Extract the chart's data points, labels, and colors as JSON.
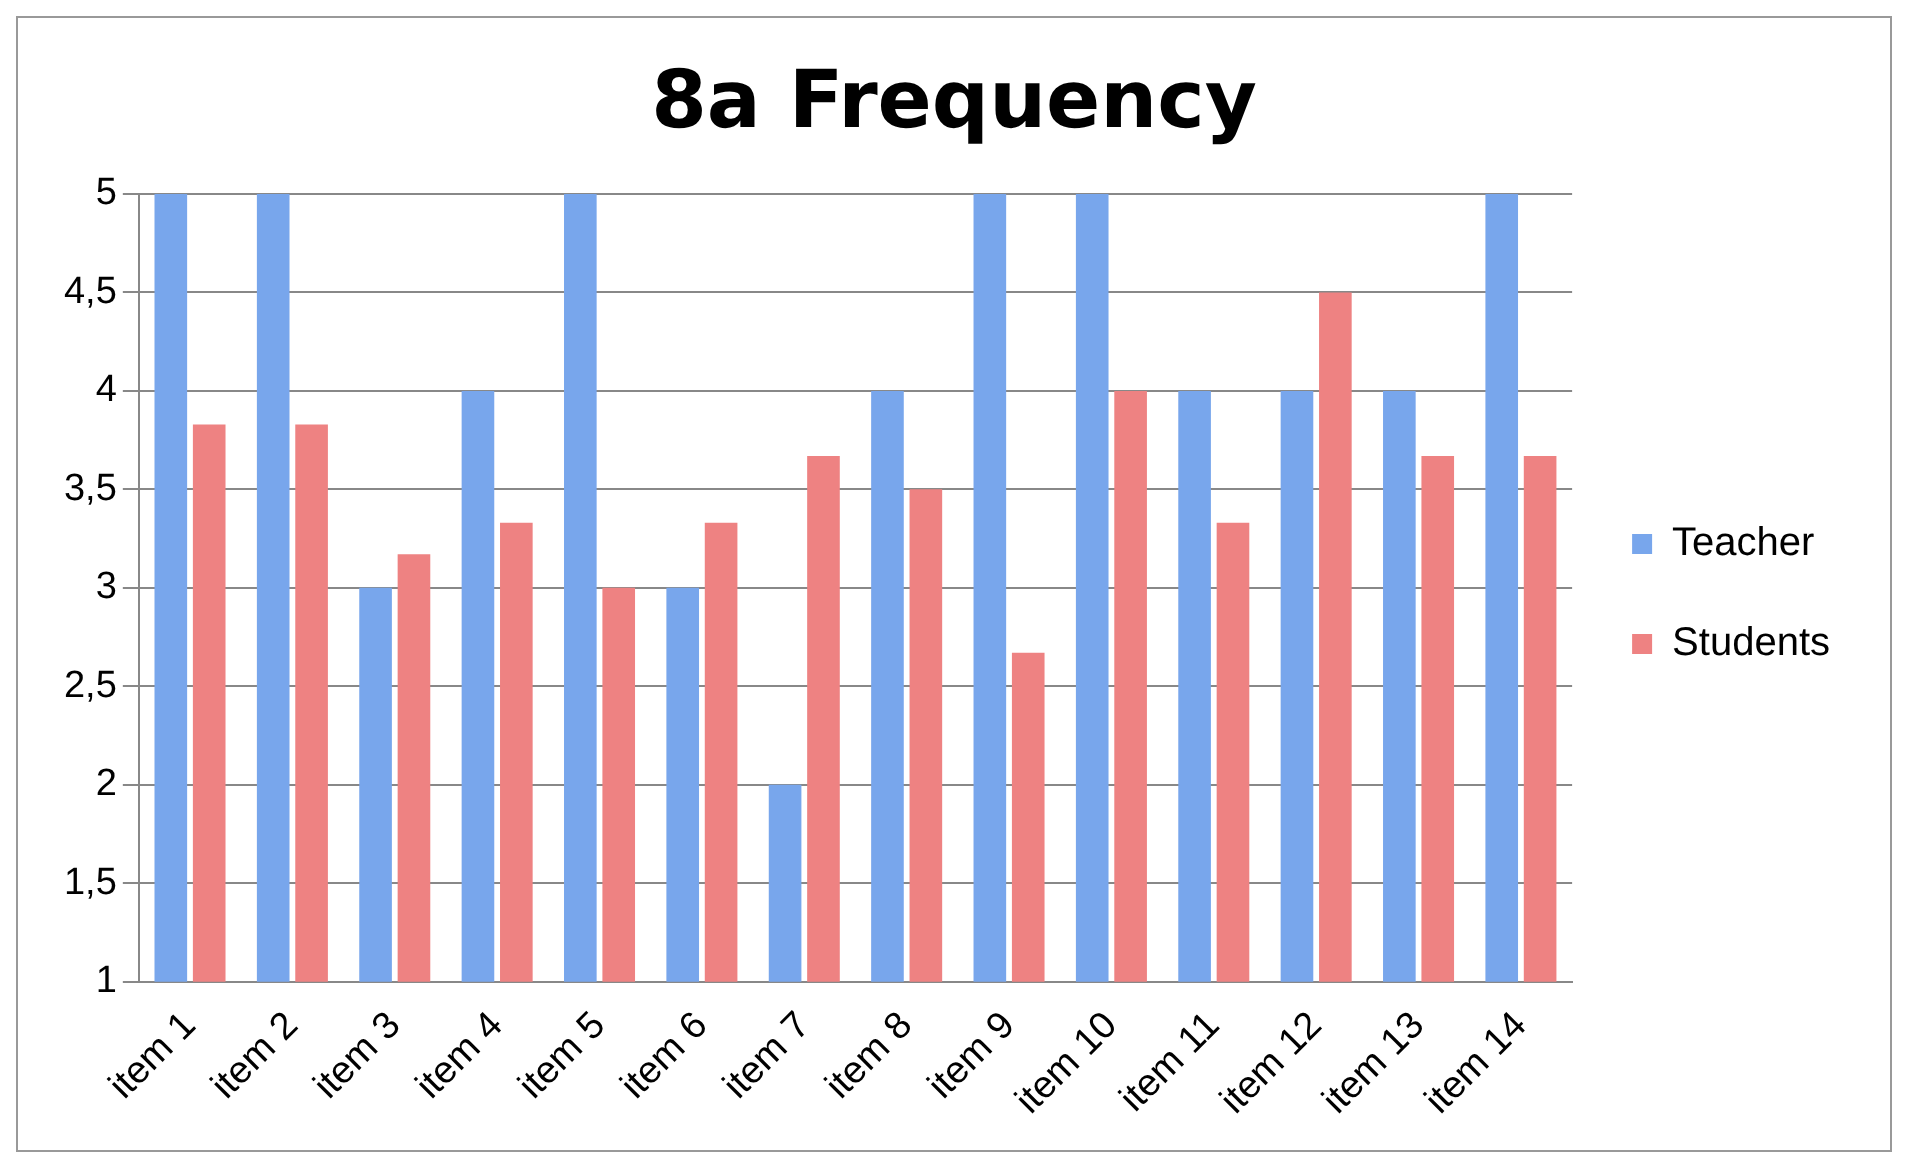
{
  "chart_data": {
    "type": "bar",
    "title": "8a Frequency",
    "categories": [
      "item 1",
      "item 2",
      "item 3",
      "item 4",
      "item 5",
      "item 6",
      "item 7",
      "item 8",
      "item 9",
      "item 10",
      "item 11",
      "item 12",
      "item 13",
      "item 14"
    ],
    "series": [
      {
        "name": "Teacher",
        "color": "#78a6ec",
        "values": [
          5,
          5,
          3,
          4,
          5,
          3,
          2,
          4,
          5,
          5,
          4,
          4,
          4,
          5
        ]
      },
      {
        "name": "Students",
        "color": "#ee8282",
        "values": [
          3.83,
          3.83,
          3.17,
          3.33,
          3,
          3.33,
          3.67,
          3.5,
          2.67,
          4,
          3.33,
          4.5,
          3.67,
          3.67
        ]
      }
    ],
    "ylim": [
      1,
      5
    ],
    "yticks": [
      1,
      {
        "value": 1.5,
        "label": "1,5"
      },
      2,
      {
        "value": 2.5,
        "label": "2,5"
      },
      3,
      {
        "value": 3.5,
        "label": "3,5"
      },
      4,
      {
        "value": 4.5,
        "label": "4,5"
      },
      5
    ],
    "grid": "y",
    "legend": "right"
  }
}
